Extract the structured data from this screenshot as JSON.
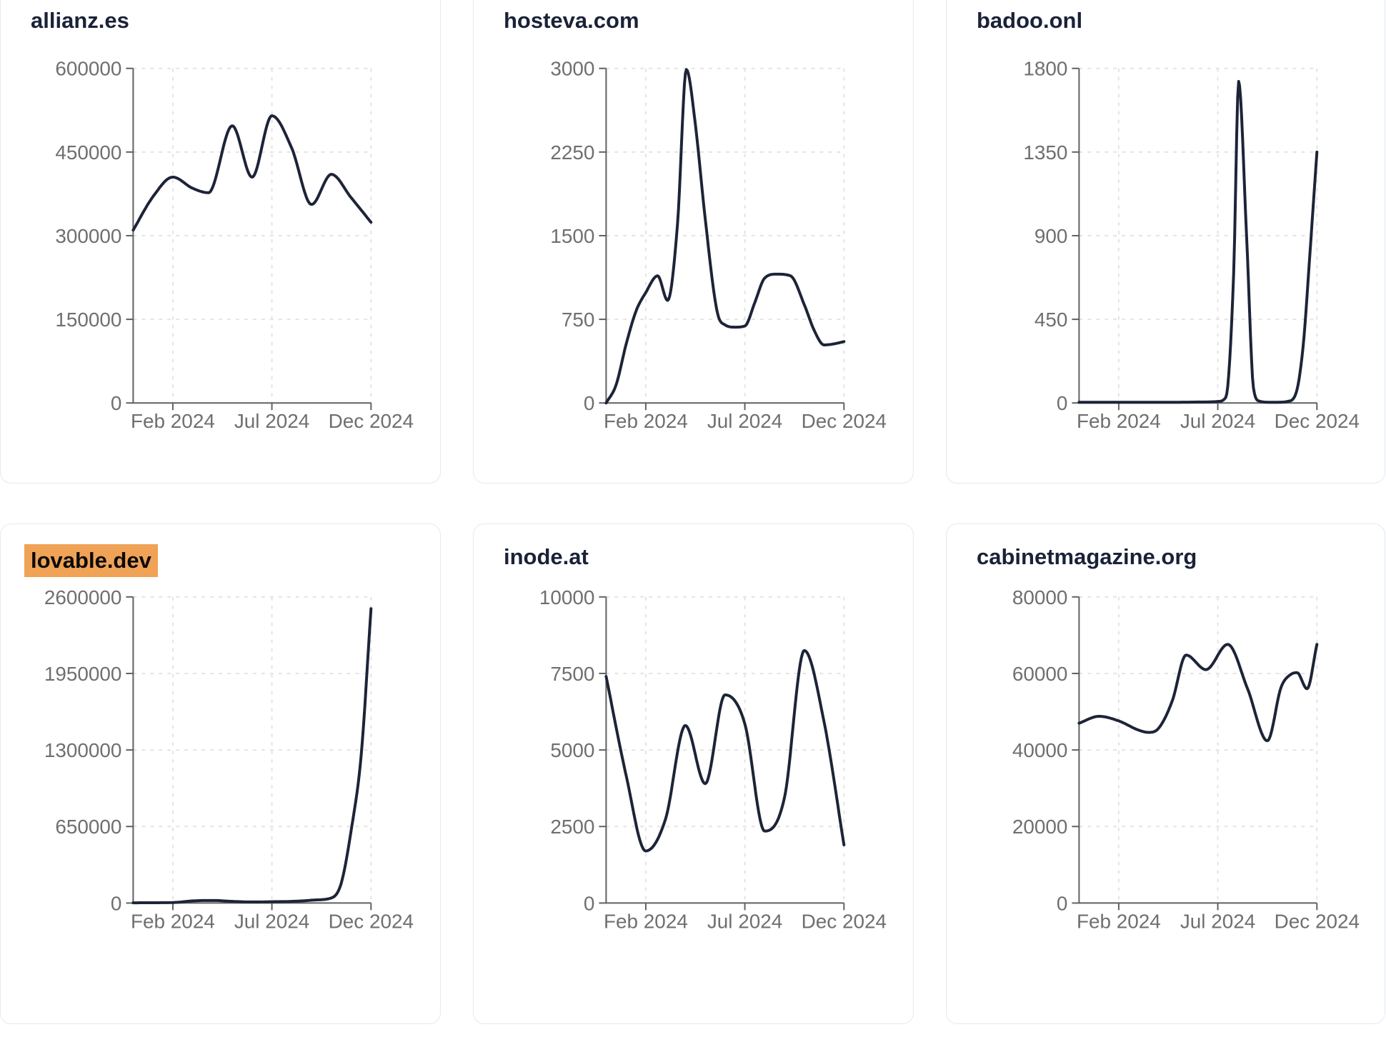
{
  "theme": {
    "background": "#ffffff",
    "card_border": "#e5e8f0",
    "title_color": "#1a2238",
    "highlight_color": "#f0a256",
    "highlight_text_color": "#0a0a0a",
    "line_color": "#1d2438",
    "axis_color": "#616161",
    "tick_label_color": "#6f6f6f",
    "grid_color": "#e4e4e4"
  },
  "chart_data": [
    {
      "type": "line",
      "title": "allianz.es",
      "title_highlighted": false,
      "x_ticks": [
        "Feb 2024",
        "Jul 2024",
        "Dec 2024"
      ],
      "x_tick_months": [
        2,
        7,
        12
      ],
      "y_ticks": [
        "0",
        "150000",
        "300000",
        "450000",
        "600000"
      ],
      "ylim": [
        0,
        600000
      ],
      "grid": true,
      "legend": false,
      "points": [
        [
          0,
          310000
        ],
        [
          1,
          370000
        ],
        [
          2,
          405000
        ],
        [
          3,
          385000
        ],
        [
          3.8,
          377000
        ],
        [
          5,
          497000
        ],
        [
          6,
          405000
        ],
        [
          7,
          515000
        ],
        [
          8,
          457000
        ],
        [
          9,
          356000
        ],
        [
          10,
          410000
        ],
        [
          11,
          368000
        ],
        [
          12,
          324000
        ]
      ]
    },
    {
      "type": "line",
      "title": "hosteva.com",
      "title_highlighted": false,
      "x_ticks": [
        "Feb 2024",
        "Jul 2024",
        "Dec 2024"
      ],
      "x_tick_months": [
        2,
        7,
        12
      ],
      "y_ticks": [
        "0",
        "750",
        "1500",
        "2250",
        "3000"
      ],
      "ylim": [
        0,
        3000
      ],
      "grid": true,
      "legend": false,
      "points": [
        [
          0,
          0
        ],
        [
          0.5,
          160
        ],
        [
          1,
          520
        ],
        [
          1.5,
          820
        ],
        [
          2,
          990
        ],
        [
          2.6,
          1140
        ],
        [
          3.1,
          920
        ],
        [
          3.6,
          1600
        ],
        [
          4.05,
          2990
        ],
        [
          4.5,
          2500
        ],
        [
          5,
          1650
        ],
        [
          5.6,
          820
        ],
        [
          6,
          700
        ],
        [
          6.5,
          680
        ],
        [
          7,
          690
        ],
        [
          7.5,
          900
        ],
        [
          8,
          1120
        ],
        [
          8.6,
          1155
        ],
        [
          9.3,
          1140
        ],
        [
          10,
          880
        ],
        [
          10.5,
          650
        ],
        [
          11,
          520
        ],
        [
          11.5,
          530
        ],
        [
          12,
          550
        ]
      ]
    },
    {
      "type": "line",
      "title": "badoo.onl",
      "title_highlighted": false,
      "x_ticks": [
        "Feb 2024",
        "Jul 2024",
        "Dec 2024"
      ],
      "x_tick_months": [
        2,
        7,
        12
      ],
      "y_ticks": [
        "0",
        "450",
        "900",
        "1350",
        "1800"
      ],
      "ylim": [
        0,
        1800
      ],
      "grid": true,
      "legend": false,
      "points": [
        [
          0,
          4
        ],
        [
          1,
          4
        ],
        [
          2,
          4
        ],
        [
          3,
          4
        ],
        [
          4,
          4
        ],
        [
          5,
          4
        ],
        [
          6,
          5
        ],
        [
          7,
          8
        ],
        [
          7.4,
          30
        ],
        [
          7.8,
          700
        ],
        [
          8.05,
          1730
        ],
        [
          8.45,
          900
        ],
        [
          8.8,
          80
        ],
        [
          9.1,
          10
        ],
        [
          9.6,
          4
        ],
        [
          10,
          4
        ],
        [
          10.5,
          8
        ],
        [
          10.9,
          40
        ],
        [
          11.3,
          300
        ],
        [
          11.65,
          810
        ],
        [
          12,
          1350
        ]
      ]
    },
    {
      "type": "line",
      "title": "lovable.dev",
      "title_highlighted": true,
      "x_ticks": [
        "Feb 2024",
        "Jul 2024",
        "Dec 2024"
      ],
      "x_tick_months": [
        2,
        7,
        12
      ],
      "y_ticks": [
        "0",
        "650000",
        "1300000",
        "1950000",
        "2600000"
      ],
      "ylim": [
        0,
        2600000
      ],
      "grid": true,
      "legend": false,
      "points": [
        [
          0,
          2000
        ],
        [
          1,
          2500
        ],
        [
          2,
          4000
        ],
        [
          3,
          18000
        ],
        [
          4,
          22000
        ],
        [
          5,
          14000
        ],
        [
          6,
          9000
        ],
        [
          7,
          11000
        ],
        [
          8,
          14000
        ],
        [
          9,
          24000
        ],
        [
          10,
          43000
        ],
        [
          10.5,
          170000
        ],
        [
          11,
          620000
        ],
        [
          11.5,
          1250000
        ],
        [
          12,
          2500000
        ]
      ]
    },
    {
      "type": "line",
      "title": "inode.at",
      "title_highlighted": false,
      "x_ticks": [
        "Feb 2024",
        "Jul 2024",
        "Dec 2024"
      ],
      "x_tick_months": [
        2,
        7,
        12
      ],
      "y_ticks": [
        "0",
        "2500",
        "5000",
        "7500",
        "10000"
      ],
      "ylim": [
        0,
        10000
      ],
      "grid": true,
      "legend": false,
      "points": [
        [
          0,
          7400
        ],
        [
          1,
          4200
        ],
        [
          2,
          1700
        ],
        [
          3,
          2750
        ],
        [
          4,
          5800
        ],
        [
          5,
          3900
        ],
        [
          6,
          6800
        ],
        [
          7,
          5850
        ],
        [
          8,
          2350
        ],
        [
          9,
          3450
        ],
        [
          10,
          8250
        ],
        [
          11,
          5900
        ],
        [
          12,
          1900
        ]
      ]
    },
    {
      "type": "line",
      "title": "cabinetmagazine.org",
      "title_highlighted": false,
      "x_ticks": [
        "Feb 2024",
        "Jul 2024",
        "Dec 2024"
      ],
      "x_tick_months": [
        2,
        7,
        12
      ],
      "y_ticks": [
        "0",
        "20000",
        "40000",
        "60000",
        "80000"
      ],
      "ylim": [
        0,
        80000
      ],
      "grid": true,
      "legend": false,
      "points": [
        [
          0,
          47000
        ],
        [
          1,
          48800
        ],
        [
          2,
          47600
        ],
        [
          3,
          45200
        ],
        [
          3.5,
          44600
        ],
        [
          4,
          45600
        ],
        [
          4.7,
          52800
        ],
        [
          5.4,
          64800
        ],
        [
          6.4,
          61000
        ],
        [
          7.5,
          67600
        ],
        [
          8.5,
          56000
        ],
        [
          9.5,
          42400
        ],
        [
          10.2,
          56500
        ],
        [
          10.7,
          59800
        ],
        [
          11,
          60200
        ],
        [
          11.5,
          56000
        ],
        [
          12,
          67600
        ]
      ]
    }
  ]
}
